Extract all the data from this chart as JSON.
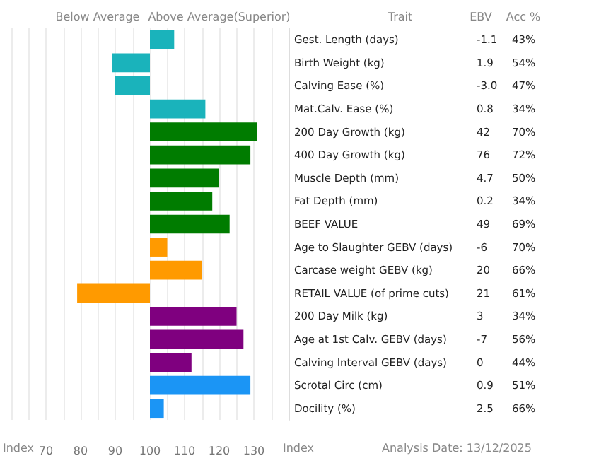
{
  "chart_data": {
    "type": "bar",
    "orientation": "horizontal",
    "categories": [
      "Gest. Length (days)",
      "Birth Weight (kg)",
      "Calving Ease (%)",
      "Mat.Calv. Ease (%)",
      "200 Day Growth (kg)",
      "400 Day Growth (kg)",
      "Muscle Depth (mm)",
      "Fat Depth (mm)",
      "BEEF VALUE",
      "Age to Slaughter GEBV (days)",
      "Carcase weight GEBV (kg)",
      "RETAIL VALUE (of prime cuts)",
      "200 Day Milk (kg)",
      "Age at 1st Calv. GEBV (days)",
      "Calving Interval GEBV (days)",
      "Scrotal Circ (cm)",
      "Docility (%)"
    ],
    "base": [
      100,
      100,
      100,
      100,
      100,
      100,
      100,
      100,
      100,
      100,
      100,
      100,
      100,
      100,
      100,
      100,
      100
    ],
    "values": [
      7,
      -11,
      -10,
      16,
      31,
      29,
      20,
      18,
      23,
      5,
      15,
      -21,
      25,
      27,
      12,
      29,
      4
    ],
    "colors": [
      "#1ab3bb",
      "#1ab3bb",
      "#1ab3bb",
      "#1ab3bb",
      "#007c00",
      "#007c00",
      "#007c00",
      "#007c00",
      "#007c00",
      "#ff9a00",
      "#ff9a00",
      "#ff9a00",
      "#7f007f",
      "#7f007f",
      "#7f007f",
      "#1b95f5",
      "#1b95f5"
    ],
    "xlim": [
      60,
      140
    ],
    "xticks": [
      {
        "value": 60,
        "label": null
      },
      {
        "value": 65,
        "label": null
      },
      70,
      {
        "value": 75,
        "label": null
      },
      80,
      {
        "value": 85,
        "label": null
      },
      90,
      {
        "value": 95,
        "label": null
      },
      100,
      {
        "value": 105,
        "label": null
      },
      110,
      {
        "value": 115,
        "label": null
      },
      120,
      {
        "value": 125,
        "label": null
      },
      130,
      {
        "value": 135,
        "label": null
      },
      {
        "value": 140,
        "label": null
      }
    ],
    "grid": "x",
    "annotations": [
      "Below Average",
      "Above Average(Superior)",
      "Trait",
      "EBV",
      "Acc %",
      "Index",
      "Index",
      "Analysis Date: 13/12/2025",
      "-1.1",
      "43%",
      "1.9",
      "54%",
      "-3.0",
      "47%",
      "0.8",
      "34%",
      "42",
      "70%",
      "76",
      "72%",
      "4.7",
      "50%",
      "0.2",
      "34%",
      "49",
      "69%",
      "-6",
      "70%",
      "20",
      "66%",
      "21",
      "61%",
      "3",
      "34%",
      "-7",
      "56%",
      "0",
      "44%",
      "0.9",
      "51%",
      "2.5",
      "66%"
    ]
  }
}
